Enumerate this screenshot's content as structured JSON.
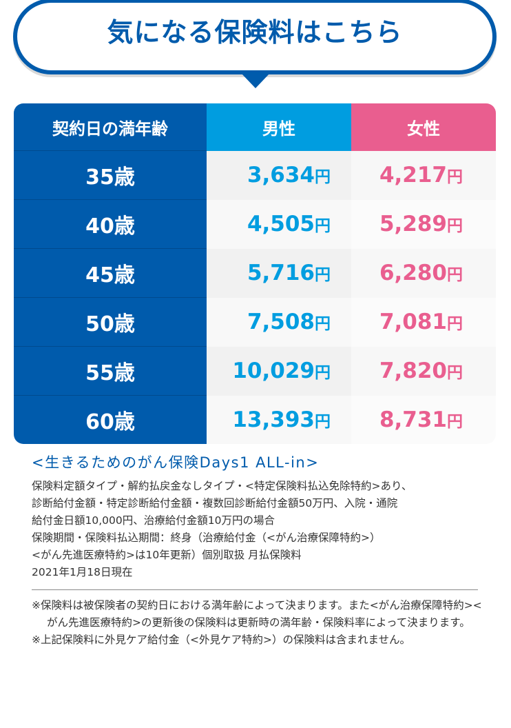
{
  "header": {
    "title": "気になる保険料はこちら"
  },
  "table": {
    "columns": {
      "age": "契約日の満年齢",
      "male": "男性",
      "female": "女性"
    },
    "currency_unit": "円",
    "rows": [
      {
        "age": "35歳",
        "male": "3,634",
        "female": "4,217"
      },
      {
        "age": "40歳",
        "male": "4,505",
        "female": "5,289"
      },
      {
        "age": "45歳",
        "male": "5,716",
        "female": "6,280"
      },
      {
        "age": "50歳",
        "male": "7,508",
        "female": "7,081"
      },
      {
        "age": "55歳",
        "male": "10,029",
        "female": "7,820"
      },
      {
        "age": "60歳",
        "male": "13,393",
        "female": "8,731"
      }
    ]
  },
  "notes": {
    "product_name": "<生きるためのがん保険Days1 ALL-in>",
    "conditions": [
      "保険料定額タイプ・解約払戻金なしタイプ・<特定保険料払込免除特約>あり、",
      "診断給付金額・特定診断給付金額・複数回診断給付金額50万円、入院・通院",
      "給付金日額10,000円、治療給付金額10万円の場合",
      "保険期間・保険料払込期間：終身（治療給付金（<がん治療保障特約>）",
      "<がん先進医療特約>は10年更新）個別取扱 月払保険料",
      "2021年1月18日現在"
    ],
    "footnotes": [
      "※保険料は被保険者の契約日における満年齢によって決まります。また<がん治療保障特約><がん先進医療特約>の更新後の保険料は更新時の満年齢・保険料率によって決まります。",
      "※上記保険料に外見ケア給付金（<外見ケア特約>）の保険料は含まれません。"
    ]
  },
  "colors": {
    "brand_blue": "#005bac",
    "male_blue": "#009de0",
    "female_pink": "#e95e8f"
  }
}
